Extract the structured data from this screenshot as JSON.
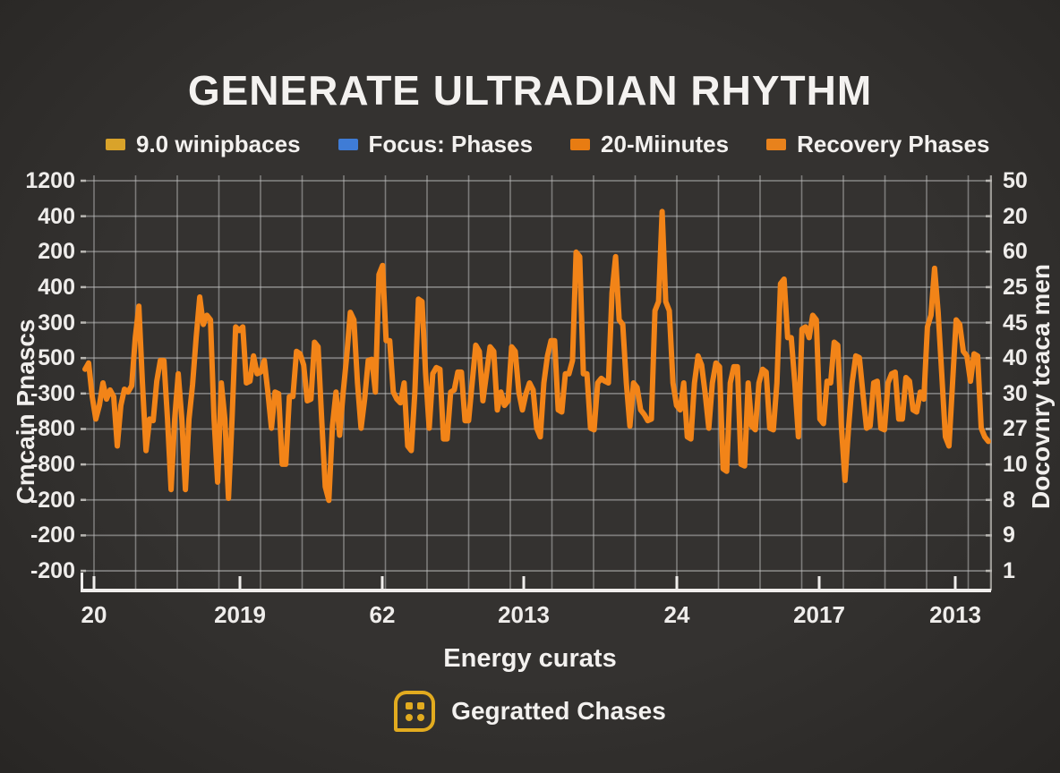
{
  "title": "GENERATE ULTRADIAN RHYTHM",
  "legend": [
    {
      "label": "9.0 winipbaces",
      "color": "#d9a32a"
    },
    {
      "label": "Focus: Phases",
      "color": "#3f7cd6"
    },
    {
      "label": "20-Miinutes",
      "color": "#e87c12"
    },
    {
      "label": "Recovery Phases",
      "color": "#e8821c"
    }
  ],
  "chart_data": {
    "type": "line",
    "title": "GENERATE ULTRADIAN RHYTHM",
    "xlabel": "Energy curats",
    "ylabel_left": "Cmcain Pnascs",
    "ylabel_right": "Docovnry tcaca men",
    "x_ticks": [
      "20",
      "2019",
      "62",
      "2013",
      "24",
      "2017",
      "2013"
    ],
    "y_ticks_left": [
      "1200",
      "400",
      "200",
      "400",
      "300",
      "500",
      "-300",
      "-800",
      "-800",
      "-200",
      "-200",
      "-200"
    ],
    "y_ticks_right": [
      "50",
      "20",
      "60",
      "25",
      "45",
      "40",
      "30",
      "27",
      "10",
      "8",
      "9",
      "1"
    ],
    "ylim": [
      0,
      100
    ],
    "grid": true,
    "legend_position": "top",
    "line_color": "#f28418",
    "grid_color": "rgba(195,195,195,0.5)",
    "axis_color": "#f0eeec",
    "series": [
      {
        "name": "Recovery Phases",
        "color": "#f28418",
        "values": [
          53.3,
          54.8,
          46.7,
          41.3,
          44.6,
          50,
          46.1,
          48.3,
          46.7,
          34.8,
          44.6,
          48.5,
          47.8,
          49.3,
          60.9,
          68.5,
          50,
          33.7,
          41.3,
          40.9,
          50.4,
          55.4,
          55.4,
          41.3,
          24.3,
          41.3,
          52.2,
          41.3,
          24.3,
          41.3,
          49.6,
          60.9,
          70.7,
          64.1,
          66.3,
          65.2,
          41.3,
          26.1,
          50,
          41.3,
          22.2,
          41.3,
          63.5,
          62.6,
          63.5,
          50,
          50.4,
          56.5,
          52.2,
          52.6,
          55.4,
          47.8,
          39.1,
          47.8,
          47.4,
          30.4,
          30.4,
          46.7,
          46.7,
          57.6,
          57,
          54.3,
          45.7,
          46.1,
          59.8,
          58.7,
          41.3,
          25,
          21.7,
          39.6,
          47.8,
          37.4,
          47.6,
          56.5,
          67,
          65.2,
          50,
          39.1,
          46.1,
          55.4,
          55.7,
          47.8,
          76.1,
          78.3,
          60.2,
          60.2,
          47.8,
          46.1,
          45.2,
          50,
          34.8,
          33.7,
          47.8,
          70.2,
          69.6,
          52.2,
          39.1,
          52.2,
          53.7,
          53.3,
          36.5,
          36.5,
          47.8,
          48.3,
          52.6,
          52.6,
          40.9,
          40.9,
          50,
          59.1,
          57.6,
          45.7,
          52.2,
          58.7,
          57.6,
          43.5,
          47.8,
          44.6,
          45.7,
          58.7,
          57.6,
          47.8,
          43.5,
          47.4,
          50,
          48.3,
          39.1,
          37,
          50,
          56.5,
          60.2,
          60.2,
          43.5,
          43,
          52.2,
          52.2,
          55.4,
          81.5,
          80.4,
          52.2,
          52.2,
          39.1,
          38.7,
          50,
          51.1,
          50.4,
          50,
          71.7,
          80.4,
          65.2,
          64.1,
          50,
          39.6,
          50,
          48.9,
          43.5,
          42.4,
          40.9,
          41.3,
          67.4,
          69.6,
          91.3,
          69.6,
          67.4,
          50,
          44.6,
          43.5,
          50,
          37,
          36.5,
          50,
          56.5,
          54.3,
          47.4,
          39.1,
          50,
          54.8,
          53.9,
          29.3,
          28.7,
          50,
          53.9,
          53.9,
          30.4,
          30,
          50,
          39.6,
          38.7,
          50,
          53.3,
          52.6,
          39.1,
          38.7,
          50,
          73.9,
          75,
          60.9,
          60.9,
          50,
          37,
          63,
          63.5,
          60.9,
          66.3,
          65.2,
          41.3,
          40.2,
          50.4,
          50,
          59.8,
          59.1,
          39.6,
          26.5,
          39.1,
          50,
          56.5,
          56.1,
          47.4,
          39.1,
          39.6,
          50,
          50.4,
          39.1,
          38.7,
          50,
          52.2,
          52.6,
          41.3,
          41.3,
          51.3,
          50.4,
          43.5,
          43,
          47.8,
          46.1,
          63.5,
          66.3,
          77.6,
          67,
          52.2,
          37,
          34.8,
          50,
          65.2,
          64.1,
          57.6,
          56.5,
          50.4,
          57,
          56.5,
          39.1,
          37,
          35.9
        ]
      }
    ]
  },
  "footer": {
    "icon": "grid-dots-icon",
    "icon_color": "#e2ab1f",
    "label": "Gegratted Chases"
  }
}
